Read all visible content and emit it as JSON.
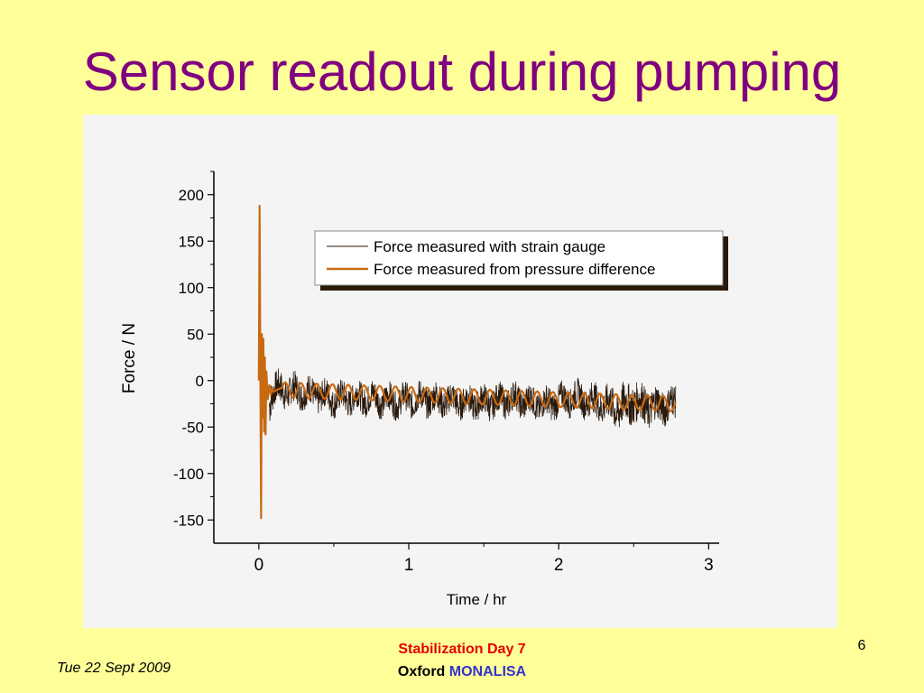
{
  "slide": {
    "title": "Sensor readout during pumping",
    "footer_date": "Tue 22 Sept 2009",
    "footer_line1": "Stabilization Day 7",
    "footer_line2_prefix": "Oxford",
    "footer_line2_accent": "MONALISA",
    "page_number": "6"
  },
  "colors": {
    "background": "#ffff99",
    "title": "#800080",
    "strain_gauge": "#2b1a0c",
    "pressure_difference": "#c86a12",
    "footer_red": "#e60000",
    "footer_blue": "#3333cc"
  },
  "chart_data": {
    "type": "line",
    "title": "",
    "xlabel": "Time / hr",
    "ylabel": "Force / N",
    "xlim": [
      -0.3,
      3.07
    ],
    "ylim": [
      -175,
      225
    ],
    "x_ticks": [
      "0",
      "1",
      "2",
      "3"
    ],
    "y_ticks": [
      "200",
      "150",
      "100",
      "50",
      "0",
      "-50",
      "-100",
      "-150"
    ],
    "grid": false,
    "legend_position": "top-right",
    "series": [
      {
        "name": "Force measured with strain gauge",
        "color": "#2b1a0c",
        "x": [
          0,
          0.01,
          0.02,
          0.03,
          0.04,
          0.06,
          0.08,
          0.1,
          0.3,
          0.5,
          0.7,
          0.9,
          1.1,
          1.3,
          1.5,
          1.7,
          1.9,
          2.1,
          2.3,
          2.4,
          2.5,
          2.6,
          2.78
        ],
        "y": [
          0,
          150,
          0,
          -110,
          40,
          -30,
          -15,
          -10,
          -12,
          -20,
          -18,
          -22,
          -20,
          -22,
          -24,
          -20,
          -26,
          -18,
          -25,
          -30,
          -22,
          -28,
          -25
        ],
        "band": [
          0,
          30,
          30,
          30,
          30,
          30,
          20,
          18,
          16,
          16,
          16,
          16,
          16,
          16,
          16,
          16,
          16,
          16,
          18,
          22,
          22,
          20,
          18
        ]
      },
      {
        "name": "Force measured from pressure difference",
        "color": "#c86a12",
        "x": [
          0,
          0.005,
          0.01,
          0.015,
          0.02,
          0.025,
          0.03,
          0.035,
          0.04,
          0.045,
          0.05,
          0.06,
          0.07,
          0.08,
          0.09,
          0.1,
          0.12,
          0.15
        ],
        "y": [
          0,
          188,
          20,
          -148,
          50,
          -40,
          45,
          -55,
          25,
          -58,
          10,
          -20,
          -5,
          -15,
          -8,
          -12,
          -10,
          -8
        ],
        "oscillation_from_x": 0.15,
        "oscillation_to_x": 2.78,
        "oscillation_mean_start": -10,
        "oscillation_mean_end": -25,
        "oscillation_amplitude": 8,
        "oscillation_period_hr": 0.105
      }
    ]
  }
}
